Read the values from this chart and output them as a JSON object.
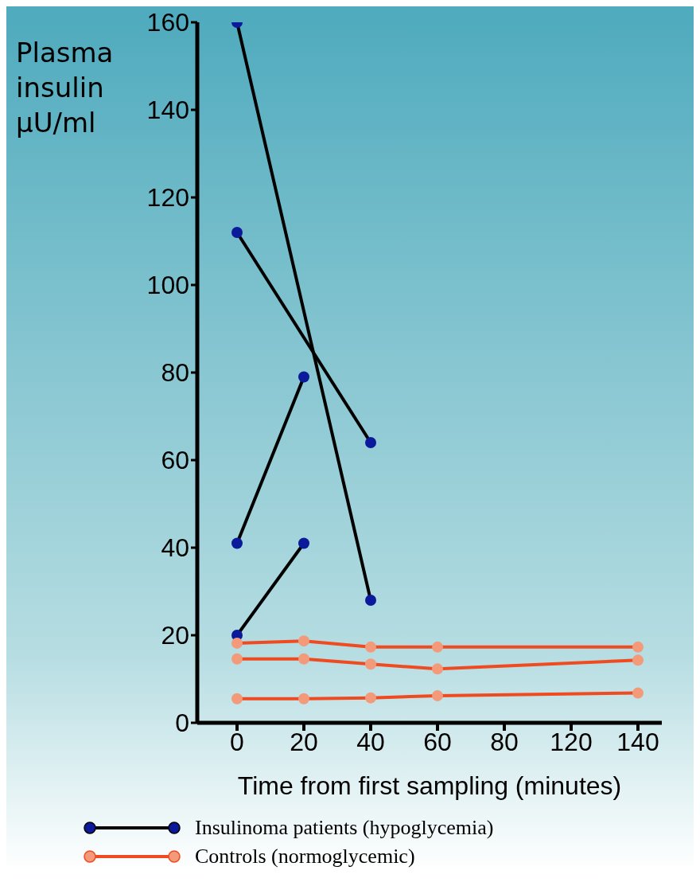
{
  "chart_data": {
    "type": "line",
    "ylabel": "Plasma insulin µU/ml",
    "xlabel": "Time from first sampling (minutes)",
    "categories": [
      "0",
      "20",
      "40",
      "60",
      "80",
      "120",
      "140"
    ],
    "ylim": [
      0,
      160
    ],
    "yticks": [
      0,
      20,
      40,
      60,
      80,
      100,
      120,
      140,
      160
    ],
    "grid": false,
    "legend": "bottom",
    "marker": "circle",
    "series": [
      {
        "name": "Insulinoma patients (hypoglycemia)",
        "color": "#000000",
        "colors": [
          "#0a1a9a",
          null,
          "#0a1a9a",
          null,
          null,
          null,
          null
        ],
        "values": [
          160,
          null,
          28,
          null,
          null,
          null,
          null
        ]
      },
      {
        "color": "#000000",
        "colors": [
          "#0a1a9a",
          null,
          "#0a1a9a",
          null,
          null,
          null,
          null
        ],
        "values": [
          112,
          null,
          64,
          null,
          null,
          null,
          null
        ]
      },
      {
        "color": "#000000",
        "colors": [
          "#0a1a9a",
          "#0a1a9a",
          null,
          null,
          null,
          null,
          null
        ],
        "values": [
          41,
          79,
          null,
          null,
          null,
          null,
          null
        ]
      },
      {
        "color": "#000000",
        "colors": [
          "#0a1a9a",
          "#0a1a9a",
          null,
          null,
          null,
          null,
          null
        ],
        "values": [
          20,
          41,
          null,
          null,
          null,
          null,
          null
        ]
      },
      {
        "name": "Controls (normoglycemic)",
        "color": "#f04a20",
        "colors": [
          "#f29a7a",
          "#f29a7a",
          "#f29a7a",
          "#f29a7a",
          null,
          null,
          "#f29a7a"
        ],
        "values": [
          18.2,
          18.7,
          17.3,
          17.3,
          null,
          null,
          17.3
        ]
      },
      {
        "color": "#f04a20",
        "colors": [
          "#f29a7a",
          "#f29a7a",
          "#f29a7a",
          "#f29a7a",
          null,
          null,
          "#f29a7a"
        ],
        "values": [
          14.6,
          14.6,
          13.4,
          12.3,
          null,
          null,
          14.3
        ]
      },
      {
        "color": "#f04a20",
        "colors": [
          "#f29a7a",
          "#f29a7a",
          "#f29a7a",
          "#f29a7a",
          null,
          null,
          "#f29a7a"
        ],
        "values": [
          5.5,
          5.5,
          5.7,
          6.2,
          null,
          null,
          6.8
        ]
      }
    ]
  }
}
